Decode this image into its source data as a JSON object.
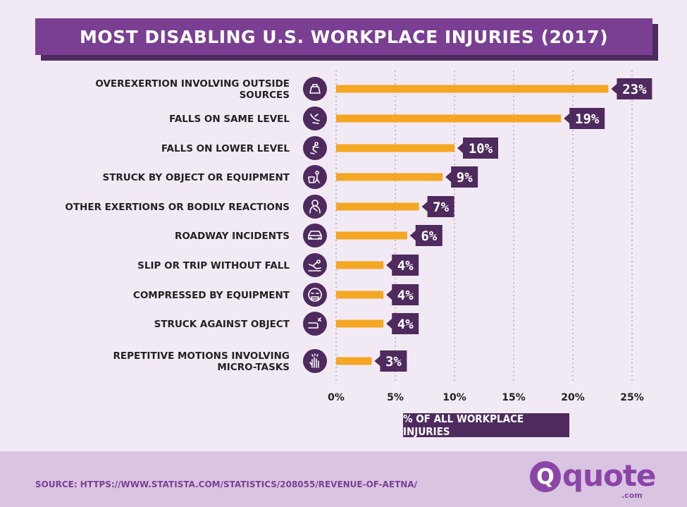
{
  "title": "MOST DISABLING U.S. WORKPLACE INJURIES (2017)",
  "xlabel": "% OF ALL WORKPLACE INJURIES",
  "source": "SOURCE: HTTPS://WWW.STATISTA.COM/STATISTICS/208055/REVENUE-OF-AETNA/",
  "logo": {
    "mark": "Q",
    "word": "quote",
    "suffix": ".com"
  },
  "colors": {
    "bar": "#f5a623",
    "accent": "#7a3f93",
    "dark": "#4e2a5e",
    "background": "#f1eaf4",
    "footer": "#d9c4e2"
  },
  "chart_data": {
    "type": "bar",
    "orientation": "horizontal",
    "title": "MOST DISABLING U.S. WORKPLACE INJURIES (2017)",
    "xlabel": "% OF ALL WORKPLACE INJURIES",
    "ylabel": "",
    "xlim": [
      0,
      25
    ],
    "ticks": [
      "0%",
      "5%",
      "10%",
      "15%",
      "20%",
      "25%"
    ],
    "tick_values": [
      0,
      5,
      10,
      15,
      20,
      25
    ],
    "grid": "vertical dotted",
    "categories": [
      "OVEREXERTION INVOLVING OUTSIDE SOURCES",
      "FALLS ON SAME LEVEL",
      "FALLS ON LOWER LEVEL",
      "STRUCK BY OBJECT OR EQUIPMENT",
      "OTHER EXERTIONS OR BODILY REACTIONS",
      "ROADWAY INCIDENTS",
      "SLIP OR TRIP WITHOUT FALL",
      "COMPRESSED BY EQUIPMENT",
      "STRUCK AGAINST OBJECT",
      "REPETITIVE MOTIONS INVOLVING MICRO-TASKS"
    ],
    "values": [
      23,
      19,
      10,
      9,
      7,
      6,
      4,
      4,
      4,
      3
    ],
    "value_labels": [
      "23%",
      "19%",
      "10%",
      "9%",
      "7%",
      "6%",
      "4%",
      "4%",
      "4%",
      "3%"
    ],
    "icons": [
      "weight-icon",
      "slip-fall-icon",
      "falling-person-icon",
      "struck-by-object-icon",
      "bodily-reaction-icon",
      "car-icon",
      "trip-icon",
      "compressed-face-icon",
      "hand-impact-icon",
      "repetitive-hand-icon"
    ]
  }
}
